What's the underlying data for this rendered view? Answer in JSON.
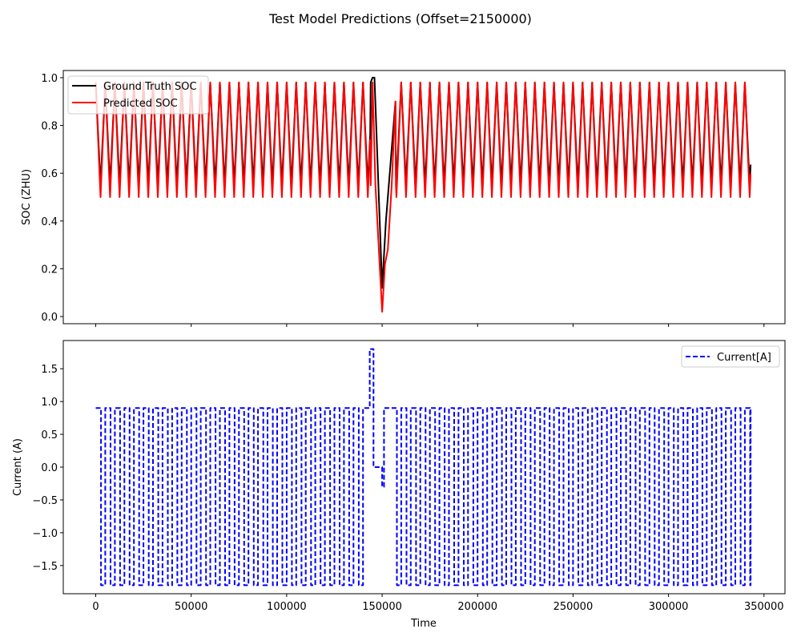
{
  "chart_data": {
    "title": "Test Model Predictions (Offset=2150000)",
    "x_tick_labels": [
      "0",
      "50000",
      "100000",
      "150000",
      "200000",
      "250000",
      "300000",
      "350000"
    ],
    "x_ticks": [
      0,
      50000,
      100000,
      150000,
      200000,
      250000,
      300000,
      350000
    ],
    "panels": [
      {
        "type": "line",
        "ylabel": "SOC (ZHU)",
        "xlim": [
          -17000,
          361000
        ],
        "ylim": [
          -0.03,
          1.03
        ],
        "y_ticks": [
          0.0,
          0.2,
          0.4,
          0.6,
          0.8,
          1.0
        ],
        "y_tick_labels": [
          "0.0",
          "0.2",
          "0.4",
          "0.6",
          "0.8",
          "1.0"
        ],
        "legend_position": "top-left",
        "series": [
          {
            "name": "Ground Truth SOC",
            "color": "#000000",
            "style": "solid",
            "description": "Periodic charge/discharge cycles between about 0.55 and 0.98 (period about 5000), brief rise to 1.0 near 145000, deep discharge to about 0.12 near 150000, then cycles resume until 343000",
            "pattern": {
              "x_start": 0,
              "x_end": 343000,
              "cycle_period": 5000,
              "cycle_peak": 0.98,
              "cycle_trough": 0.55,
              "event": [
                [
                  144000,
                  0.98
                ],
                [
                  145000,
                  1.0
                ],
                [
                  146000,
                  1.0
                ],
                [
                  150000,
                  0.12
                ],
                [
                  152000,
                  0.4
                ],
                [
                  154000,
                  0.6
                ],
                [
                  157000,
                  0.9
                ]
              ]
            }
          },
          {
            "name": "Predicted SOC",
            "color": "#ff0000",
            "style": "solid",
            "description": "Tracks ground truth; troughs dip lower to about 0.5, drops to about 0.02 near 150000",
            "pattern": {
              "x_start": 0,
              "x_end": 343000,
              "cycle_period": 5000,
              "cycle_peak": 0.98,
              "cycle_trough": 0.5,
              "event": [
                [
                  144000,
                  0.55
                ],
                [
                  145000,
                  0.98
                ],
                [
                  146500,
                  0.55
                ],
                [
                  150000,
                  0.02
                ],
                [
                  151500,
                  0.22
                ],
                [
                  153000,
                  0.28
                ],
                [
                  155000,
                  0.55
                ],
                [
                  157000,
                  0.9
                ]
              ]
            }
          }
        ]
      },
      {
        "type": "line",
        "ylabel": "Current (A)",
        "xlabel": "Time",
        "xlim": [
          -17000,
          361000
        ],
        "ylim": [
          -1.93,
          1.93
        ],
        "y_ticks": [
          -1.5,
          -1.0,
          -0.5,
          0.0,
          0.5,
          1.0,
          1.5
        ],
        "y_tick_labels": [
          "−1.5",
          "−1.0",
          "−0.5",
          "0.0",
          "0.5",
          "1.0",
          "1.5"
        ],
        "legend_position": "top-right",
        "series": [
          {
            "name": "Current[A]",
            "color": "#0000ff",
            "style": "dashed",
            "description": "Square wave alternating between 0.9 A (charge) and -1.8 A (discharge), with a 1.8 A pulse near 144000 and a short 0 A rest near 146000-150000",
            "pattern": {
              "x_start": 0,
              "x_end": 343000,
              "cycle_period": 5000,
              "high": 0.9,
              "low": -1.8,
              "event": [
                [
                  143500,
                  1.8
                ],
                [
                  145500,
                  0.0
                ],
                [
                  150000,
                  -0.3
                ]
              ]
            }
          }
        ]
      }
    ]
  }
}
